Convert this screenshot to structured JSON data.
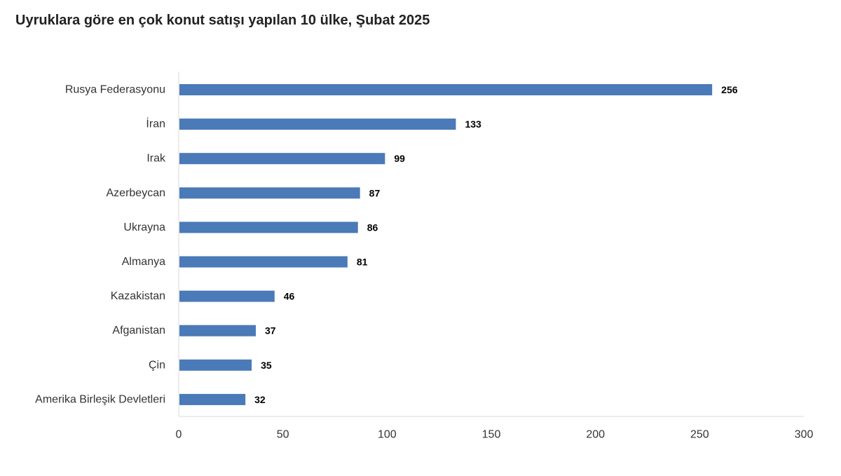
{
  "chart_data": {
    "type": "bar",
    "orientation": "horizontal",
    "title": "Uyruklara göre en çok konut satışı yapılan 10 ülke, Şubat 2025",
    "categories": [
      "Rusya Federasyonu",
      "İran",
      "Irak",
      "Azerbeycan",
      "Ukrayna",
      "Almanya",
      "Kazakistan",
      "Afganistan",
      "Çin",
      "Amerika Birleşik Devletleri"
    ],
    "values": [
      256,
      133,
      99,
      87,
      86,
      81,
      46,
      37,
      35,
      32
    ],
    "value_labels": [
      "256",
      "133",
      "99",
      "87",
      "86",
      "81",
      "46",
      "37",
      "35",
      "32"
    ],
    "xticks": [
      "0",
      "50",
      "100",
      "150",
      "200",
      "250",
      "300"
    ],
    "xlim": [
      0,
      300
    ],
    "xlabel": "",
    "ylabel": "",
    "grid": false,
    "legend": "none",
    "colors": {
      "bar": "#4a7ab7",
      "axis": "#d9d9d9"
    }
  }
}
